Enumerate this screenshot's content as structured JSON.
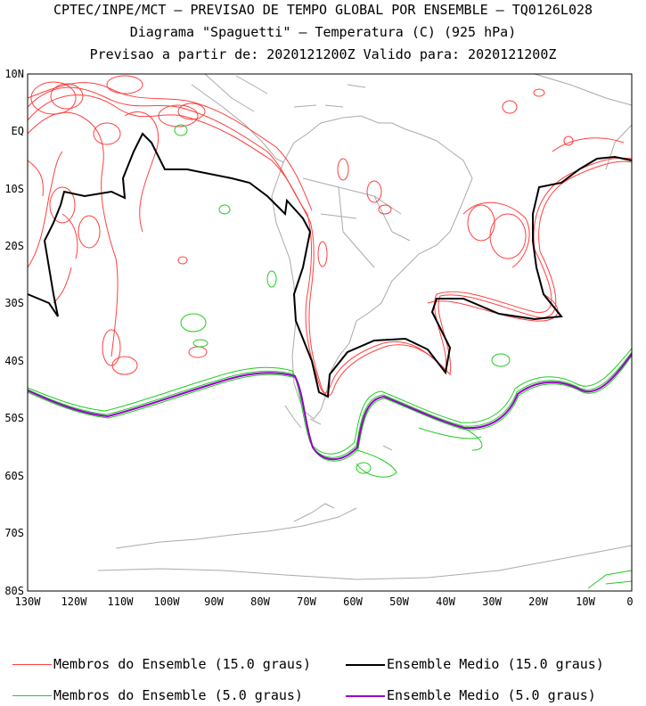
{
  "title": {
    "line1": "CPTEC/INPE/MCT – PREVISAO DE TEMPO GLOBAL POR ENSEMBLE – TQ0126L028",
    "line2": "Diagrama \"Spaguetti\" – Temperatura (C) (925 hPa)",
    "line3": "Previsao a partir de: 2020121200Z  Valido para: 2020121200Z"
  },
  "axes": {
    "lat_labels": [
      "10N",
      "EQ",
      "10S",
      "20S",
      "30S",
      "40S",
      "50S",
      "60S",
      "70S",
      "80S"
    ],
    "lon_labels": [
      "130W",
      "120W",
      "110W",
      "100W",
      "90W",
      "80W",
      "70W",
      "60W",
      "50W",
      "40W",
      "30W",
      "20W",
      "10W",
      "0"
    ]
  },
  "legend": {
    "items": [
      {
        "label": "Membros do Ensemble (15.0 graus)",
        "color": "#ff4040",
        "weight": "thin"
      },
      {
        "label": "Ensemble Medio (15.0 graus)",
        "color": "#000000",
        "weight": "thick"
      },
      {
        "label": "Membros do Ensemble (5.0 graus)",
        "color": "#22cc22",
        "weight": "thin"
      },
      {
        "label": "Ensemble Medio (5.0 graus)",
        "color": "#9900cc",
        "weight": "thick"
      }
    ]
  },
  "colors": {
    "land": "#aaaaaa",
    "frame": "#000000"
  }
}
